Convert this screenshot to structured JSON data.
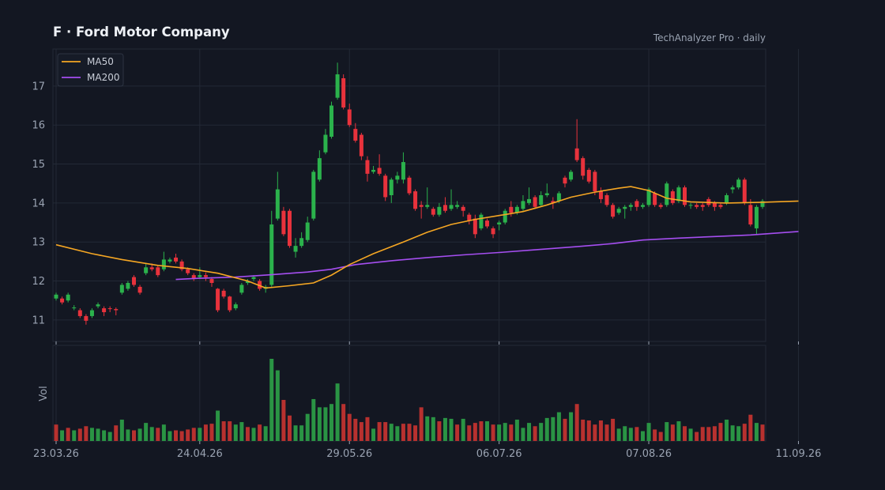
{
  "header": {
    "title": "F  ·  Ford Motor Company",
    "source": "TechAnalyzer Pro · daily"
  },
  "colors": {
    "background": "#131722",
    "panel": "#131722",
    "grid": "#232936",
    "up": "#2bb24c",
    "down": "#e8323c",
    "up_volume": "#2a9444",
    "down_volume": "#b8312f",
    "ma50": "#f5a623",
    "ma200": "#a54ef0"
  },
  "chart_data": {
    "type": "candlestick",
    "title": "F  ·  Ford Motor Company",
    "y_ticks": [
      11,
      12,
      13,
      14,
      15,
      16,
      17
    ],
    "ylim": [
      10.45,
      17.95
    ],
    "volume_ylabel": "Vol",
    "x_tick_labels": [
      "23.03.26",
      "24.04.26",
      "29.05.26",
      "06.07.26",
      "07.08.26",
      "11.09.26"
    ],
    "x_tick_index": [
      0,
      24,
      49,
      74,
      99,
      124
    ],
    "legend": [
      {
        "name": "MA50",
        "color": "#f5a623"
      },
      {
        "name": "MA200",
        "color": "#a54ef0"
      }
    ],
    "legend_position": "top-left",
    "grid": true,
    "candles": [
      [
        11.55,
        11.65,
        11.7,
        11.5
      ],
      [
        11.55,
        11.45,
        11.6,
        11.4
      ],
      [
        11.5,
        11.65,
        11.7,
        11.45
      ],
      [
        11.3,
        11.32,
        11.38,
        11.25
      ],
      [
        11.25,
        11.1,
        11.3,
        11.05
      ],
      [
        11.1,
        10.98,
        11.15,
        10.88
      ],
      [
        11.1,
        11.25,
        11.3,
        11.05
      ],
      [
        11.35,
        11.4,
        11.45,
        11.3
      ],
      [
        11.3,
        11.2,
        11.35,
        11.1
      ],
      [
        11.3,
        11.28,
        11.35,
        11.2
      ],
      [
        11.28,
        11.25,
        11.32,
        11.12
      ],
      [
        11.7,
        11.9,
        11.95,
        11.65
      ],
      [
        11.8,
        11.95,
        12.0,
        11.75
      ],
      [
        12.1,
        11.9,
        12.15,
        11.85
      ],
      [
        11.85,
        11.7,
        11.9,
        11.65
      ],
      [
        12.2,
        12.35,
        12.45,
        12.15
      ],
      [
        12.35,
        12.3,
        12.45,
        12.25
      ],
      [
        12.35,
        12.15,
        12.4,
        12.1
      ],
      [
        12.3,
        12.55,
        12.75,
        12.25
      ],
      [
        12.5,
        12.55,
        12.6,
        12.45
      ],
      [
        12.6,
        12.5,
        12.7,
        12.45
      ],
      [
        12.5,
        12.3,
        12.55,
        12.25
      ],
      [
        12.3,
        12.2,
        12.35,
        12.15
      ],
      [
        12.15,
        12.05,
        12.2,
        12.0
      ],
      [
        12.1,
        12.15,
        12.35,
        12.05
      ],
      [
        12.15,
        12.1,
        12.22,
        12.0
      ],
      [
        12.05,
        11.95,
        12.1,
        11.85
      ],
      [
        11.8,
        11.25,
        11.82,
        11.2
      ],
      [
        11.75,
        11.6,
        11.8,
        11.55
      ],
      [
        11.6,
        11.25,
        11.62,
        11.2
      ],
      [
        11.3,
        11.4,
        11.45,
        11.25
      ],
      [
        11.7,
        11.9,
        11.95,
        11.65
      ],
      [
        11.95,
        12.0,
        12.05,
        11.9
      ],
      [
        12.05,
        12.1,
        12.15,
        12.0
      ],
      [
        12.0,
        11.8,
        12.05,
        11.75
      ],
      [
        11.8,
        11.85,
        11.9,
        11.7
      ],
      [
        11.9,
        13.45,
        13.8,
        11.85
      ],
      [
        13.6,
        14.35,
        14.8,
        13.55
      ],
      [
        13.8,
        13.2,
        13.9,
        13.15
      ],
      [
        13.8,
        12.9,
        13.85,
        12.85
      ],
      [
        12.75,
        12.9,
        13.1,
        12.6
      ],
      [
        12.9,
        13.1,
        13.25,
        12.85
      ],
      [
        13.05,
        13.5,
        13.65,
        13.0
      ],
      [
        13.6,
        14.8,
        14.85,
        13.55
      ],
      [
        14.6,
        15.15,
        15.35,
        14.55
      ],
      [
        15.3,
        15.75,
        15.9,
        15.25
      ],
      [
        15.7,
        16.5,
        16.6,
        15.65
      ],
      [
        16.7,
        17.3,
        17.6,
        16.65
      ],
      [
        17.2,
        16.45,
        17.3,
        16.4
      ],
      [
        16.4,
        16.0,
        16.55,
        15.95
      ],
      [
        15.9,
        15.6,
        16.05,
        15.55
      ],
      [
        15.75,
        15.2,
        15.8,
        15.1
      ],
      [
        15.1,
        14.75,
        15.2,
        14.55
      ],
      [
        14.8,
        14.85,
        14.95,
        14.75
      ],
      [
        14.9,
        14.75,
        15.25,
        14.7
      ],
      [
        14.7,
        14.15,
        14.75,
        14.05
      ],
      [
        14.2,
        14.6,
        14.65,
        14.0
      ],
      [
        14.6,
        14.7,
        14.8,
        14.5
      ],
      [
        14.6,
        15.05,
        15.3,
        14.5
      ],
      [
        14.65,
        14.25,
        14.7,
        14.2
      ],
      [
        14.3,
        13.85,
        14.35,
        13.8
      ],
      [
        13.95,
        13.9,
        14.05,
        13.6
      ],
      [
        13.9,
        13.95,
        14.4,
        13.85
      ],
      [
        13.85,
        13.7,
        13.9,
        13.65
      ],
      [
        13.7,
        13.9,
        14.0,
        13.65
      ],
      [
        13.95,
        13.8,
        14.15,
        13.75
      ],
      [
        13.85,
        13.95,
        14.35,
        13.8
      ],
      [
        13.9,
        13.95,
        14.05,
        13.85
      ],
      [
        13.9,
        13.8,
        13.95,
        13.65
      ],
      [
        13.7,
        13.55,
        13.75,
        13.45
      ],
      [
        13.6,
        13.2,
        13.7,
        13.1
      ],
      [
        13.35,
        13.7,
        13.75,
        13.3
      ],
      [
        13.55,
        13.4,
        13.6,
        13.35
      ],
      [
        13.35,
        13.2,
        13.4,
        13.1
      ],
      [
        13.45,
        13.5,
        13.55,
        13.3
      ],
      [
        13.5,
        13.8,
        13.85,
        13.45
      ],
      [
        13.9,
        13.75,
        14.05,
        13.65
      ],
      [
        13.75,
        13.9,
        13.95,
        13.7
      ],
      [
        13.85,
        14.05,
        14.2,
        13.8
      ],
      [
        14.0,
        14.1,
        14.4,
        13.95
      ],
      [
        14.15,
        13.9,
        14.2,
        13.85
      ],
      [
        13.95,
        14.2,
        14.3,
        13.9
      ],
      [
        14.2,
        14.25,
        14.5,
        14.15
      ],
      [
        14.05,
        14.0,
        14.15,
        13.85
      ],
      [
        14.05,
        14.25,
        14.3,
        14.0
      ],
      [
        14.65,
        14.5,
        14.7,
        14.4
      ],
      [
        14.6,
        14.8,
        14.85,
        14.55
      ],
      [
        15.4,
        15.1,
        16.15,
        15.05
      ],
      [
        15.15,
        14.7,
        15.2,
        14.6
      ],
      [
        14.85,
        14.55,
        14.9,
        14.5
      ],
      [
        14.8,
        14.3,
        14.85,
        14.2
      ],
      [
        14.3,
        14.1,
        14.4,
        14.0
      ],
      [
        14.2,
        13.95,
        14.25,
        13.9
      ],
      [
        13.95,
        13.65,
        14.0,
        13.6
      ],
      [
        13.75,
        13.85,
        13.9,
        13.7
      ],
      [
        13.85,
        13.9,
        13.95,
        13.6
      ],
      [
        13.9,
        13.95,
        14.0,
        13.8
      ],
      [
        14.05,
        13.9,
        14.1,
        13.8
      ],
      [
        13.9,
        13.95,
        14.0,
        13.85
      ],
      [
        13.95,
        14.35,
        14.4,
        13.9
      ],
      [
        14.25,
        13.95,
        14.3,
        13.9
      ],
      [
        13.95,
        13.9,
        14.0,
        13.85
      ],
      [
        13.95,
        14.5,
        14.55,
        13.9
      ],
      [
        14.3,
        14.0,
        14.35,
        13.95
      ],
      [
        14.05,
        14.4,
        14.45,
        14.0
      ],
      [
        14.4,
        13.95,
        14.45,
        13.9
      ],
      [
        13.95,
        13.95,
        14.0,
        13.85
      ],
      [
        13.95,
        13.9,
        14.0,
        13.85
      ],
      [
        13.95,
        13.9,
        14.0,
        13.8
      ],
      [
        14.1,
        13.95,
        14.15,
        13.9
      ],
      [
        14.0,
        13.9,
        14.05,
        13.8
      ],
      [
        13.95,
        13.9,
        14.0,
        13.85
      ],
      [
        14.0,
        14.2,
        14.25,
        13.95
      ],
      [
        14.35,
        14.4,
        14.45,
        14.25
      ],
      [
        14.4,
        14.6,
        14.65,
        14.35
      ],
      [
        14.6,
        14.0,
        14.65,
        13.95
      ],
      [
        13.95,
        13.45,
        14.1,
        13.4
      ],
      [
        13.35,
        13.9,
        13.95,
        13.2
      ],
      [
        13.9,
        14.05,
        14.1,
        13.85
      ]
    ],
    "volume": [
      [
        0.2,
        0
      ],
      [
        0.13,
        1
      ],
      [
        0.16,
        0
      ],
      [
        0.13,
        1
      ],
      [
        0.15,
        0
      ],
      [
        0.18,
        0
      ],
      [
        0.16,
        1
      ],
      [
        0.15,
        1
      ],
      [
        0.13,
        1
      ],
      [
        0.11,
        1
      ],
      [
        0.19,
        0
      ],
      [
        0.26,
        1
      ],
      [
        0.14,
        1
      ],
      [
        0.13,
        0
      ],
      [
        0.15,
        1
      ],
      [
        0.22,
        1
      ],
      [
        0.17,
        1
      ],
      [
        0.16,
        0
      ],
      [
        0.2,
        1
      ],
      [
        0.12,
        1
      ],
      [
        0.13,
        0
      ],
      [
        0.12,
        0
      ],
      [
        0.14,
        0
      ],
      [
        0.16,
        0
      ],
      [
        0.16,
        1
      ],
      [
        0.2,
        0
      ],
      [
        0.21,
        0
      ],
      [
        0.37,
        1
      ],
      [
        0.24,
        0
      ],
      [
        0.24,
        0
      ],
      [
        0.2,
        1
      ],
      [
        0.23,
        1
      ],
      [
        0.17,
        0
      ],
      [
        0.16,
        1
      ],
      [
        0.2,
        0
      ],
      [
        0.18,
        1
      ],
      [
        1.0,
        1
      ],
      [
        0.86,
        1
      ],
      [
        0.5,
        0
      ],
      [
        0.31,
        0
      ],
      [
        0.19,
        1
      ],
      [
        0.19,
        1
      ],
      [
        0.33,
        1
      ],
      [
        0.51,
        1
      ],
      [
        0.41,
        1
      ],
      [
        0.41,
        1
      ],
      [
        0.45,
        1
      ],
      [
        0.7,
        1
      ],
      [
        0.45,
        0
      ],
      [
        0.33,
        0
      ],
      [
        0.27,
        0
      ],
      [
        0.23,
        0
      ],
      [
        0.29,
        0
      ],
      [
        0.15,
        1
      ],
      [
        0.23,
        0
      ],
      [
        0.23,
        0
      ],
      [
        0.21,
        1
      ],
      [
        0.18,
        1
      ],
      [
        0.21,
        0
      ],
      [
        0.21,
        0
      ],
      [
        0.19,
        0
      ],
      [
        0.41,
        0
      ],
      [
        0.3,
        1
      ],
      [
        0.29,
        1
      ],
      [
        0.24,
        0
      ],
      [
        0.28,
        1
      ],
      [
        0.27,
        1
      ],
      [
        0.2,
        0
      ],
      [
        0.27,
        1
      ],
      [
        0.19,
        0
      ],
      [
        0.22,
        0
      ],
      [
        0.24,
        0
      ],
      [
        0.24,
        1
      ],
      [
        0.2,
        0
      ],
      [
        0.2,
        1
      ],
      [
        0.22,
        1
      ],
      [
        0.2,
        0
      ],
      [
        0.26,
        1
      ],
      [
        0.16,
        1
      ],
      [
        0.22,
        1
      ],
      [
        0.18,
        0
      ],
      [
        0.22,
        1
      ],
      [
        0.28,
        1
      ],
      [
        0.29,
        1
      ],
      [
        0.35,
        1
      ],
      [
        0.27,
        0
      ],
      [
        0.35,
        1
      ],
      [
        0.45,
        0
      ],
      [
        0.26,
        0
      ],
      [
        0.25,
        0
      ],
      [
        0.2,
        0
      ],
      [
        0.25,
        0
      ],
      [
        0.2,
        0
      ],
      [
        0.27,
        0
      ],
      [
        0.15,
        1
      ],
      [
        0.18,
        1
      ],
      [
        0.16,
        1
      ],
      [
        0.17,
        0
      ],
      [
        0.12,
        1
      ],
      [
        0.22,
        1
      ],
      [
        0.14,
        0
      ],
      [
        0.11,
        0
      ],
      [
        0.23,
        1
      ],
      [
        0.2,
        0
      ],
      [
        0.24,
        1
      ],
      [
        0.18,
        0
      ],
      [
        0.15,
        1
      ],
      [
        0.11,
        0
      ],
      [
        0.17,
        0
      ],
      [
        0.17,
        0
      ],
      [
        0.18,
        0
      ],
      [
        0.22,
        0
      ],
      [
        0.26,
        1
      ],
      [
        0.19,
        1
      ],
      [
        0.18,
        1
      ],
      [
        0.21,
        0
      ],
      [
        0.32,
        0
      ],
      [
        0.22,
        1
      ],
      [
        0.2,
        0
      ]
    ],
    "ma50": [
      [
        0,
        12.93
      ],
      [
        6,
        12.7
      ],
      [
        11,
        12.55
      ],
      [
        17,
        12.4
      ],
      [
        22,
        12.32
      ],
      [
        27,
        12.2
      ],
      [
        32,
        12.0
      ],
      [
        35,
        11.82
      ],
      [
        39,
        11.88
      ],
      [
        43,
        11.95
      ],
      [
        46,
        12.15
      ],
      [
        49,
        12.42
      ],
      [
        53,
        12.7
      ],
      [
        58,
        13.0
      ],
      [
        62,
        13.25
      ],
      [
        66,
        13.45
      ],
      [
        70,
        13.58
      ],
      [
        74,
        13.68
      ],
      [
        78,
        13.78
      ],
      [
        82,
        13.95
      ],
      [
        86,
        14.15
      ],
      [
        90,
        14.28
      ],
      [
        94,
        14.38
      ],
      [
        96,
        14.42
      ],
      [
        99,
        14.32
      ],
      [
        102,
        14.12
      ],
      [
        106,
        14.03
      ],
      [
        112,
        14.0
      ],
      [
        118,
        14.02
      ],
      [
        124,
        14.05
      ]
    ],
    "ma200": [
      [
        20,
        12.04
      ],
      [
        24,
        12.07
      ],
      [
        30,
        12.1
      ],
      [
        36,
        12.16
      ],
      [
        42,
        12.23
      ],
      [
        46,
        12.3
      ],
      [
        50,
        12.42
      ],
      [
        56,
        12.52
      ],
      [
        62,
        12.6
      ],
      [
        68,
        12.67
      ],
      [
        74,
        12.73
      ],
      [
        80,
        12.8
      ],
      [
        87,
        12.88
      ],
      [
        93,
        12.96
      ],
      [
        98,
        13.05
      ],
      [
        104,
        13.1
      ],
      [
        110,
        13.14
      ],
      [
        116,
        13.18
      ],
      [
        124,
        13.27
      ]
    ]
  }
}
